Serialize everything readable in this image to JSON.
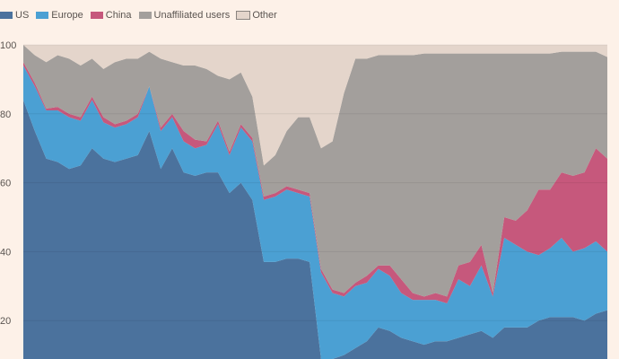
{
  "chart_data": {
    "type": "area",
    "stacked": true,
    "title": "",
    "xlabel": "",
    "ylabel": "",
    "ylim": [
      0,
      100
    ],
    "yticks": [
      "100",
      "80",
      "60",
      "40",
      "20"
    ],
    "ytick_values": [
      100,
      80,
      60,
      40,
      20
    ],
    "grid": true,
    "legend_position": "top-left",
    "series": [
      {
        "name": "US",
        "color": "#4b729d",
        "values": [
          84,
          75,
          67,
          66,
          64,
          65,
          70,
          67,
          66,
          67,
          68,
          75,
          64,
          70,
          63,
          62,
          63,
          63,
          57,
          60,
          55,
          37,
          37,
          38,
          38,
          37,
          0,
          5,
          10,
          12,
          14,
          18,
          17,
          15,
          14,
          13,
          14,
          14,
          15,
          16,
          17,
          15,
          18,
          18,
          18,
          20,
          21,
          21,
          21,
          20,
          22,
          23
        ]
      },
      {
        "name": "Europe",
        "color": "#4ba0d3",
        "values": [
          10,
          13,
          14,
          15,
          15,
          13,
          14,
          10.5,
          10,
          10,
          11,
          13,
          11,
          9,
          9,
          8,
          8,
          14,
          11,
          16,
          17,
          18,
          19,
          20,
          19,
          19,
          34,
          23,
          17,
          18,
          17,
          17,
          16,
          13,
          12,
          13,
          12,
          11,
          17,
          14,
          19,
          12,
          26,
          24,
          22,
          19,
          20,
          23,
          19,
          21,
          21,
          17
        ]
      },
      {
        "name": "China",
        "color": "#c6587c",
        "values": [
          1,
          1,
          0.5,
          1,
          1,
          1,
          1,
          1.5,
          1,
          1,
          1,
          0,
          1,
          1,
          3,
          2.5,
          1,
          1,
          1,
          1,
          1,
          1,
          1,
          1,
          1,
          1,
          1,
          1,
          1,
          1,
          2,
          1,
          3,
          4,
          2,
          1,
          2,
          2,
          4,
          7,
          6,
          1,
          6,
          7,
          12,
          19,
          17,
          19,
          22,
          22,
          27,
          27
        ]
      },
      {
        "name": "Unaffiliated users",
        "color": "#a39f9c",
        "values": [
          5,
          8,
          13.5,
          15,
          16,
          15,
          11,
          14,
          18,
          18,
          16,
          10,
          20,
          15,
          19,
          21.5,
          21,
          13,
          21,
          15,
          12,
          9,
          11,
          16,
          21,
          22,
          35,
          43,
          58,
          65,
          63,
          61,
          61,
          65,
          69,
          70.5,
          69.5,
          70.5,
          61.5,
          60.5,
          55.5,
          69.5,
          47.5,
          48.5,
          45.5,
          39.5,
          39.5,
          35,
          36,
          35,
          28,
          29.5
        ]
      },
      {
        "name": "Other",
        "color": "#e4d5cb",
        "values": [
          0,
          3,
          5,
          3,
          4,
          6,
          4,
          7,
          5,
          4,
          4,
          2,
          4,
          5,
          6,
          6,
          7,
          9,
          10,
          8,
          15,
          35,
          32,
          25,
          21,
          21,
          30,
          28,
          14,
          4,
          4,
          3,
          3,
          3,
          3,
          2.5,
          2.5,
          2.5,
          2.5,
          2.5,
          2.5,
          2.5,
          2.5,
          2.5,
          2.5,
          2.5,
          2.5,
          2,
          2,
          2,
          2,
          3.5
        ]
      }
    ]
  }
}
